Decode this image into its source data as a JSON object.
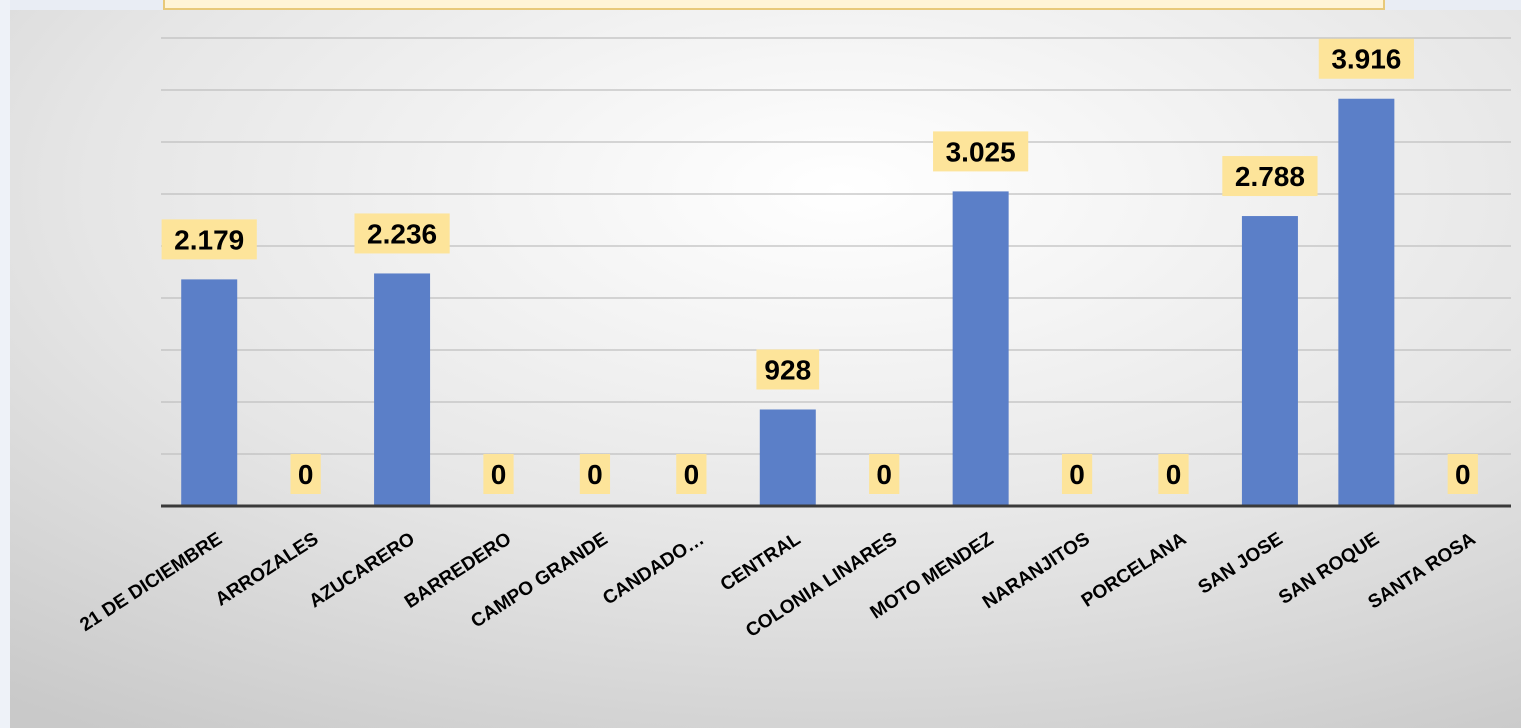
{
  "chart_data": {
    "type": "bar",
    "categories": [
      "21 DE DICIEMBRE",
      "ARROZALES",
      "AZUCARERO",
      "BARREDERO",
      "CAMPO GRANDE",
      "CANDADO…",
      "CENTRAL",
      "COLONIA LINARES",
      "MOTO MENDEZ",
      "NARANJITOS",
      "PORCELANA",
      "SAN JOSE",
      "SAN ROQUE",
      "SANTA ROSA"
    ],
    "values": [
      2179,
      0,
      2236,
      0,
      0,
      0,
      928,
      0,
      3025,
      0,
      0,
      2788,
      3916,
      0
    ],
    "data_labels": [
      "2.179",
      "0",
      "2.236",
      "0",
      "0",
      "0",
      "928",
      "0",
      "3.025",
      "0",
      "0",
      "2.788",
      "3.916",
      "0"
    ],
    "ylim": [
      0,
      4500
    ],
    "grid": true,
    "legend": "none",
    "colors": {
      "bar": "#5b7fc8",
      "label_bg": "#fde49a",
      "gridline": "#bfbfbf",
      "axis": "#3a3a3a",
      "panel_light": "#ffffff",
      "panel_dark": "#c8c8c8"
    }
  }
}
